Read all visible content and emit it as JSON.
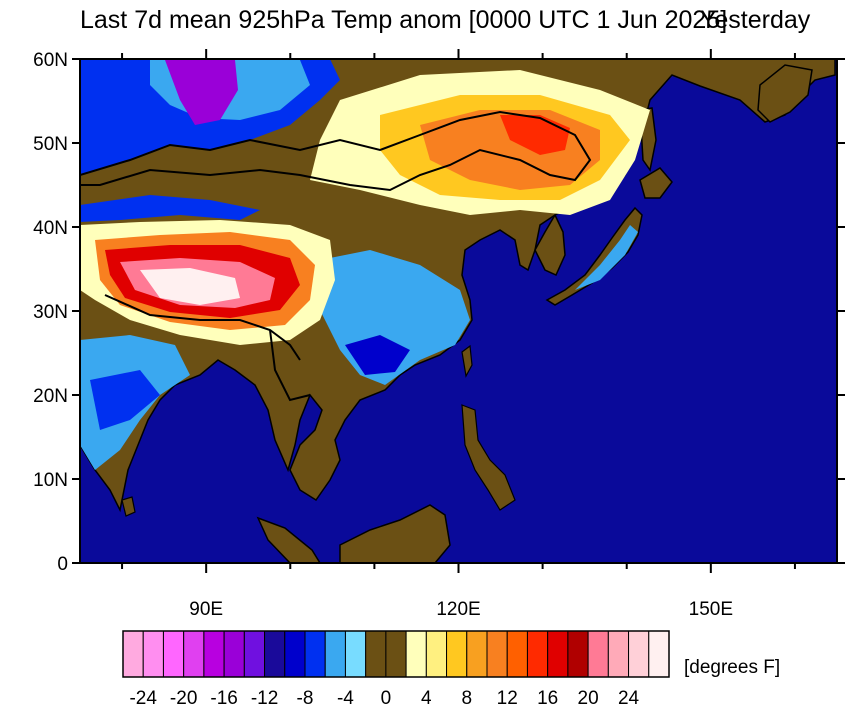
{
  "title": "Last 7d mean 925hPa Temp anom [0000 UTC 1 Jun 2025]",
  "title_overlap": "Yesterday",
  "map": {
    "projection": "cylindrical equidistant",
    "lon_range": [
      75,
      165
    ],
    "lat_range": [
      0,
      60
    ],
    "ocean_color": "#0a0a9a",
    "land_neutral_color": "#6b5014"
  },
  "lat_ticks": [
    {
      "value": 0,
      "label": "0"
    },
    {
      "value": 10,
      "label": "10N"
    },
    {
      "value": 20,
      "label": "20N"
    },
    {
      "value": 30,
      "label": "30N"
    },
    {
      "value": 40,
      "label": "40N"
    },
    {
      "value": 50,
      "label": "50N"
    },
    {
      "value": 60,
      "label": "60N"
    }
  ],
  "lon_ticks": [
    {
      "value": 90,
      "label": "90E"
    },
    {
      "value": 120,
      "label": "120E"
    },
    {
      "value": 150,
      "label": "150E"
    }
  ],
  "colorbar": {
    "units": "[degrees F]",
    "colors": [
      "#ffaae0",
      "#ff8ef0",
      "#ff66ff",
      "#e040f0",
      "#b800e0",
      "#9a00d8",
      "#7010e0",
      "#1a0a9a",
      "#0000cc",
      "#0030f0",
      "#3aa8f0",
      "#78dcff",
      "#6b5014",
      "#6b5014",
      "#ffffbb",
      "#fff080",
      "#ffc820",
      "#f8a020",
      "#f88020",
      "#ff6000",
      "#ff2a00",
      "#e00000",
      "#b00000",
      "#ff7a95",
      "#ffaab8",
      "#ffd0d8",
      "#fff0f0"
    ],
    "labels": [
      {
        "edge": 1,
        "text": "-24"
      },
      {
        "edge": 3,
        "text": "-20"
      },
      {
        "edge": 5,
        "text": "-16"
      },
      {
        "edge": 7,
        "text": "-12"
      },
      {
        "edge": 9,
        "text": "-8"
      },
      {
        "edge": 11,
        "text": "-4"
      },
      {
        "edge": 13,
        "text": "0"
      },
      {
        "edge": 15,
        "text": "4"
      },
      {
        "edge": 17,
        "text": "8"
      },
      {
        "edge": 19,
        "text": "12"
      },
      {
        "edge": 21,
        "text": "16"
      },
      {
        "edge": 23,
        "text": "20"
      },
      {
        "edge": 25,
        "text": "24"
      }
    ]
  }
}
